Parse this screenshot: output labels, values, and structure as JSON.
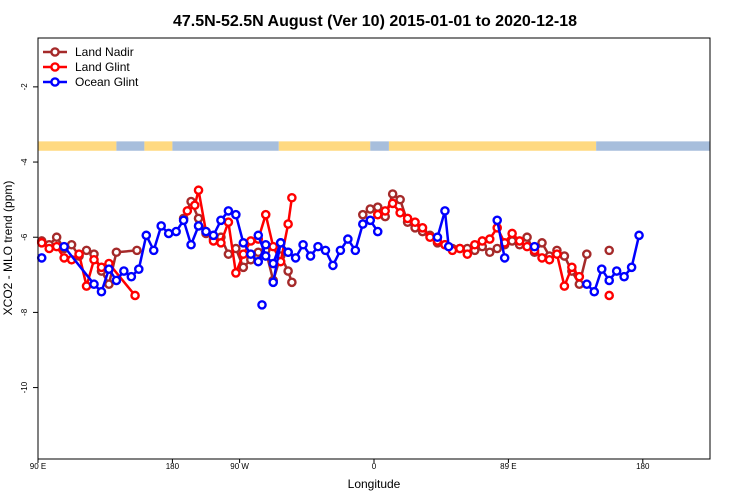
{
  "chart_data": {
    "type": "line",
    "title": "47.5N-52.5N August (Ver 10)   2015-01-01 to 2020-12-18",
    "xlabel": "Longitude",
    "ylabel": "XCO2 - MLO trend (ppm)",
    "xlim": [
      -180,
      180
    ],
    "ylim": [
      -11.9,
      -0.7
    ],
    "x_ticks": [
      {
        "value": -180,
        "label": "90 E"
      },
      {
        "value": -108,
        "label": "180"
      },
      {
        "value": -72,
        "label": "90 W"
      },
      {
        "value": 0,
        "label": "0"
      },
      {
        "value": 72,
        "label": "89 E"
      },
      {
        "value": 144,
        "label": "180"
      }
    ],
    "y_ticks": [
      {
        "value": -2,
        "label": "-2"
      },
      {
        "value": -4,
        "label": "-4"
      },
      {
        "value": -6,
        "label": "-6"
      },
      {
        "value": -8,
        "label": "-8"
      },
      {
        "value": -10,
        "label": "-10"
      }
    ],
    "legend_position": "top-left",
    "land_ocean_strip": {
      "land_color": "#FFD980",
      "ocean_color": "#A7BEDC",
      "y_range": [
        -3.45,
        -3.7
      ],
      "segments": [
        {
          "from": -180,
          "to": -138,
          "type": "land"
        },
        {
          "from": -138,
          "to": -123,
          "type": "ocean"
        },
        {
          "from": -123,
          "to": -108,
          "type": "land"
        },
        {
          "from": -108,
          "to": -51,
          "type": "ocean"
        },
        {
          "from": -51,
          "to": -2,
          "type": "land"
        },
        {
          "from": -2,
          "to": 8,
          "type": "ocean"
        },
        {
          "from": 8,
          "to": 119,
          "type": "land"
        },
        {
          "from": 119,
          "to": 180,
          "type": "ocean"
        }
      ]
    },
    "series": [
      {
        "name": "Land Nadir",
        "color": "#A52A2A",
        "segments": [
          [
            [
              -178,
              -6.1
            ],
            [
              -174,
              -6.2
            ],
            [
              -170,
              -6.0
            ],
            [
              -166,
              -6.3
            ],
            [
              -162,
              -6.2
            ],
            [
              -158,
              -6.5
            ],
            [
              -154,
              -6.35
            ],
            [
              -150,
              -6.45
            ],
            [
              -146,
              -6.9
            ],
            [
              -142,
              -7.25
            ],
            [
              -138,
              -6.4
            ],
            [
              -127,
              -6.35
            ]
          ],
          [
            [
              -102,
              -5.5
            ],
            [
              -98,
              -5.05
            ],
            [
              -94,
              -5.5
            ],
            [
              -90,
              -5.9
            ],
            [
              -86,
              -6.05
            ],
            [
              -82,
              -6.0
            ],
            [
              -78,
              -6.45
            ],
            [
              -74,
              -6.3
            ],
            [
              -70,
              -6.8
            ],
            [
              -66,
              -6.6
            ],
            [
              -62,
              -6.4
            ],
            [
              -58,
              -6.35
            ],
            [
              -54,
              -7.15
            ],
            [
              -50,
              -6.5
            ],
            [
              -46,
              -6.9
            ],
            [
              -44,
              -7.2
            ]
          ],
          [
            [
              -6,
              -5.4
            ],
            [
              -2,
              -5.25
            ],
            [
              2,
              -5.2
            ],
            [
              6,
              -5.45
            ],
            [
              10,
              -4.85
            ],
            [
              14,
              -5.0
            ],
            [
              18,
              -5.6
            ],
            [
              22,
              -5.75
            ],
            [
              26,
              -5.85
            ],
            [
              30,
              -5.95
            ],
            [
              34,
              -6.15
            ],
            [
              38,
              -6.2
            ],
            [
              42,
              -6.3
            ],
            [
              46,
              -6.3
            ],
            [
              50,
              -6.3
            ],
            [
              54,
              -6.35
            ],
            [
              58,
              -6.25
            ],
            [
              62,
              -6.4
            ],
            [
              66,
              -6.3
            ],
            [
              70,
              -6.2
            ],
            [
              74,
              -6.1
            ],
            [
              78,
              -6.2
            ],
            [
              82,
              -6.0
            ],
            [
              86,
              -6.4
            ],
            [
              90,
              -6.15
            ],
            [
              94,
              -6.5
            ],
            [
              98,
              -6.35
            ],
            [
              102,
              -6.5
            ],
            [
              106,
              -6.9
            ],
            [
              110,
              -7.25
            ],
            [
              114,
              -6.45
            ]
          ],
          [
            [
              126,
              -6.35
            ]
          ]
        ]
      },
      {
        "name": "Land Glint",
        "color": "#FF0000",
        "segments": [
          [
            [
              -178,
              -6.15
            ],
            [
              -174,
              -6.3
            ],
            [
              -170,
              -6.25
            ],
            [
              -166,
              -6.55
            ],
            [
              -162,
              -6.6
            ],
            [
              -158,
              -6.45
            ],
            [
              -154,
              -7.3
            ],
            [
              -150,
              -6.6
            ],
            [
              -146,
              -6.8
            ],
            [
              -142,
              -6.7
            ],
            [
              -128,
              -7.55
            ]
          ],
          [
            [
              -100,
              -5.3
            ],
            [
              -96,
              -5.15
            ],
            [
              -94,
              -4.75
            ],
            [
              -90,
              -5.85
            ],
            [
              -86,
              -6.1
            ],
            [
              -82,
              -6.15
            ],
            [
              -78,
              -5.6
            ],
            [
              -74,
              -6.95
            ],
            [
              -70,
              -6.45
            ],
            [
              -66,
              -6.1
            ],
            [
              -62,
              -6.05
            ],
            [
              -58,
              -5.4
            ],
            [
              -54,
              -6.25
            ],
            [
              -50,
              -6.65
            ],
            [
              -46,
              -5.65
            ],
            [
              -44,
              -4.95
            ]
          ],
          [
            [
              2,
              -5.4
            ],
            [
              6,
              -5.3
            ],
            [
              10,
              -5.1
            ],
            [
              14,
              -5.35
            ],
            [
              18,
              -5.5
            ],
            [
              22,
              -5.6
            ],
            [
              26,
              -5.75
            ],
            [
              30,
              -6.0
            ],
            [
              34,
              -6.1
            ],
            [
              38,
              -6.2
            ],
            [
              42,
              -6.35
            ],
            [
              46,
              -6.3
            ],
            [
              50,
              -6.45
            ],
            [
              54,
              -6.2
            ],
            [
              58,
              -6.1
            ],
            [
              62,
              -6.05
            ],
            [
              66,
              -5.75
            ],
            [
              70,
              -6.15
            ],
            [
              74,
              -5.9
            ],
            [
              78,
              -6.1
            ],
            [
              82,
              -6.25
            ],
            [
              86,
              -6.35
            ],
            [
              90,
              -6.55
            ],
            [
              94,
              -6.6
            ],
            [
              98,
              -6.45
            ],
            [
              102,
              -7.3
            ],
            [
              106,
              -6.8
            ],
            [
              110,
              -7.05
            ]
          ],
          [
            [
              126,
              -7.55
            ]
          ]
        ]
      },
      {
        "name": "Ocean Glint",
        "color": "#0000FF",
        "segments": [
          [
            [
              -178,
              -6.55
            ]
          ],
          [
            [
              -166,
              -6.25
            ],
            [
              -150,
              -7.25
            ],
            [
              -146,
              -7.45
            ],
            [
              -142,
              -6.85
            ],
            [
              -138,
              -7.15
            ],
            [
              -134,
              -6.9
            ],
            [
              -130,
              -7.05
            ],
            [
              -126,
              -6.85
            ],
            [
              -122,
              -5.95
            ],
            [
              -118,
              -6.35
            ],
            [
              -114,
              -5.7
            ],
            [
              -110,
              -5.9
            ],
            [
              -106,
              -5.85
            ],
            [
              -102,
              -5.55
            ],
            [
              -98,
              -6.2
            ],
            [
              -94,
              -5.7
            ],
            [
              -90,
              -5.85
            ],
            [
              -86,
              -5.95
            ],
            [
              -82,
              -5.55
            ],
            [
              -78,
              -5.3
            ],
            [
              -74,
              -5.4
            ],
            [
              -70,
              -6.15
            ],
            [
              -66,
              -6.45
            ],
            [
              -62,
              -6.65
            ],
            [
              -58,
              -6.2
            ]
          ],
          [
            [
              -62,
              -5.95
            ],
            [
              -58,
              -6.5
            ],
            [
              -54,
              -6.7
            ],
            [
              -50,
              -6.15
            ],
            [
              -46,
              -6.4
            ],
            [
              -42,
              -6.55
            ],
            [
              -38,
              -6.2
            ],
            [
              -34,
              -6.5
            ],
            [
              -30,
              -6.25
            ],
            [
              -26,
              -6.35
            ],
            [
              -22,
              -6.75
            ],
            [
              -18,
              -6.35
            ],
            [
              -14,
              -6.05
            ],
            [
              -10,
              -6.35
            ],
            [
              -6,
              -5.65
            ],
            [
              -2,
              -5.55
            ],
            [
              2,
              -5.85
            ]
          ],
          [
            [
              -60,
              -7.8
            ]
          ],
          [
            [
              -54,
              -7.2
            ],
            [
              -50,
              -6.15
            ],
            [
              -46,
              -6.4
            ]
          ],
          [
            [
              34,
              -6.0
            ],
            [
              38,
              -5.3
            ],
            [
              40,
              -6.25
            ]
          ],
          [
            [
              66,
              -5.55
            ],
            [
              70,
              -6.55
            ]
          ],
          [
            [
              86,
              -6.25
            ]
          ],
          [
            [
              114,
              -7.25
            ],
            [
              118,
              -7.45
            ],
            [
              122,
              -6.85
            ],
            [
              126,
              -7.15
            ],
            [
              130,
              -6.9
            ],
            [
              134,
              -7.05
            ],
            [
              138,
              -6.8
            ],
            [
              142,
              -5.95
            ]
          ]
        ]
      }
    ]
  }
}
